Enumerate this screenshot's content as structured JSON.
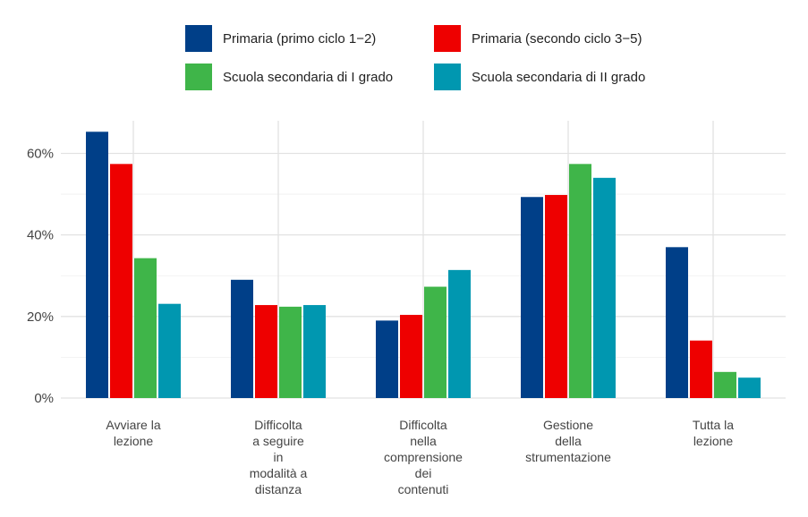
{
  "chart_data": {
    "type": "bar",
    "categories": [
      [
        "Avviare la",
        "lezione"
      ],
      [
        "Difficolta",
        "a seguire",
        "in",
        "modalità a",
        "distanza"
      ],
      [
        "Difficolta",
        "nella",
        "comprensione",
        "dei",
        "contenuti"
      ],
      [
        "Gestione",
        "della",
        "strumentazione"
      ],
      [
        "Tutta la",
        "lezione"
      ]
    ],
    "series": [
      {
        "name": "Primaria (primo ciclo 1−2)",
        "color": "#003f88",
        "values": [
          65.3,
          29.0,
          19.0,
          49.3,
          37.0
        ]
      },
      {
        "name": "Primaria (secondo ciclo 3−5)",
        "color": "#ee0000",
        "values": [
          57.4,
          22.8,
          20.4,
          49.8,
          14.1
        ]
      },
      {
        "name": "Scuola secondaria di I grado",
        "color": "#3fb549",
        "values": [
          34.3,
          22.4,
          27.3,
          57.4,
          6.4
        ]
      },
      {
        "name": "Scuola secondaria di II grado",
        "color": "#0097b0",
        "values": [
          23.1,
          22.8,
          31.4,
          54.0,
          5.0
        ]
      }
    ],
    "yticks": [
      "0%",
      "20%",
      "40%",
      "60%"
    ],
    "ylim": [
      0,
      68
    ],
    "legend_position": "top",
    "grid": true
  }
}
